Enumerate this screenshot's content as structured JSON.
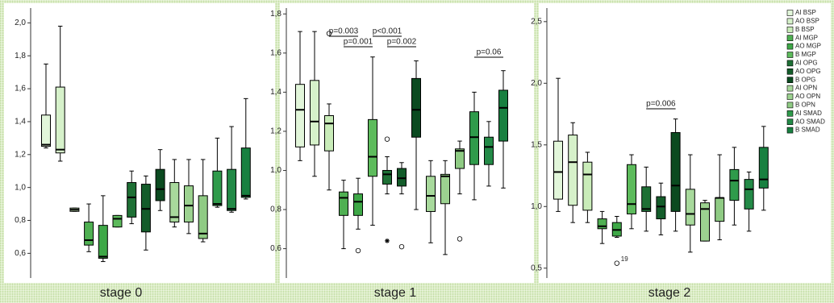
{
  "legend": [
    {
      "name": "AI BSP",
      "color": "#e2f6da"
    },
    {
      "name": "AO BSP",
      "color": "#d6f1ca"
    },
    {
      "name": "B BSP",
      "color": "#c9ecb9"
    },
    {
      "name": "AI MGP",
      "color": "#4fb052"
    },
    {
      "name": "AO MGP",
      "color": "#3ea847"
    },
    {
      "name": "B MGP",
      "color": "#5dbb5c"
    },
    {
      "name": "AI OPG",
      "color": "#1e7035"
    },
    {
      "name": "AO OPG",
      "color": "#135c2a"
    },
    {
      "name": "B OPG",
      "color": "#0b4a20"
    },
    {
      "name": "AI OPN",
      "color": "#a8d99c"
    },
    {
      "name": "AO OPN",
      "color": "#9cd290"
    },
    {
      "name": "B OPN",
      "color": "#8fcb84"
    },
    {
      "name": "AI SMAD",
      "color": "#2f9b4b"
    },
    {
      "name": "AO SMAD",
      "color": "#238a47"
    },
    {
      "name": "B SMAD",
      "color": "#188040"
    }
  ],
  "chart_data": [
    {
      "type": "box",
      "xlabel": "stage 0",
      "ylim": [
        0.45,
        2.09
      ],
      "yticks": [
        {
          "value": 0.6,
          "label": "0,6"
        },
        {
          "value": 0.8,
          "label": "0,8"
        },
        {
          "value": 1.0,
          "label": "1,0"
        },
        {
          "value": 1.2,
          "label": "1,2"
        },
        {
          "value": 1.4,
          "label": "1,4"
        },
        {
          "value": 1.6,
          "label": "1,6"
        },
        {
          "value": 1.8,
          "label": "1,8"
        },
        {
          "value": 2.0,
          "label": "2,0"
        }
      ],
      "boxes": [
        {
          "whisker_low": 1.24,
          "q1": 1.25,
          "median": 1.26,
          "q3": 1.44,
          "whisker_high": 1.75
        },
        {
          "whisker_low": 1.16,
          "q1": 1.21,
          "median": 1.23,
          "q3": 1.61,
          "whisker_high": 1.98
        },
        {
          "whisker_low": 0.855,
          "q1": 0.855,
          "median": 0.865,
          "q3": 0.875,
          "whisker_high": 0.875
        },
        {
          "whisker_low": 0.61,
          "q1": 0.65,
          "median": 0.68,
          "q3": 0.79,
          "whisker_high": 0.9
        },
        {
          "whisker_low": 0.55,
          "q1": 0.57,
          "median": 0.58,
          "q3": 0.77,
          "whisker_high": 0.95
        },
        {
          "whisker_low": 0.76,
          "q1": 0.76,
          "median": 0.81,
          "q3": 0.83,
          "whisker_high": 0.83
        },
        {
          "whisker_low": 0.78,
          "q1": 0.82,
          "median": 0.94,
          "q3": 1.03,
          "whisker_high": 1.1
        },
        {
          "whisker_low": 0.62,
          "q1": 0.73,
          "median": 0.87,
          "q3": 1.02,
          "whisker_high": 1.07
        },
        {
          "whisker_low": 0.86,
          "q1": 0.92,
          "median": 0.99,
          "q3": 1.11,
          "whisker_high": 1.23
        },
        {
          "whisker_low": 0.76,
          "q1": 0.79,
          "median": 0.82,
          "q3": 1.03,
          "whisker_high": 1.17
        },
        {
          "whisker_low": 0.72,
          "q1": 0.79,
          "median": 0.89,
          "q3": 1.01,
          "whisker_high": 1.17
        },
        {
          "whisker_low": 0.67,
          "q1": 0.69,
          "median": 0.72,
          "q3": 0.95,
          "whisker_high": 1.17
        },
        {
          "whisker_low": 0.88,
          "q1": 0.89,
          "median": 0.9,
          "q3": 1.1,
          "whisker_high": 1.3
        },
        {
          "whisker_low": 0.85,
          "q1": 0.86,
          "median": 0.87,
          "q3": 1.11,
          "whisker_high": 1.37
        },
        {
          "whisker_low": 0.93,
          "q1": 0.94,
          "median": 0.95,
          "q3": 1.24,
          "whisker_high": 1.54
        }
      ],
      "annotations": []
    },
    {
      "type": "box",
      "xlabel": "stage 1",
      "ylim": [
        0.45,
        1.83
      ],
      "yticks": [
        {
          "value": 0.6,
          "label": "0,6"
        },
        {
          "value": 0.8,
          "label": "0,8"
        },
        {
          "value": 1.0,
          "label": "1,0"
        },
        {
          "value": 1.2,
          "label": "1,2"
        },
        {
          "value": 1.4,
          "label": "1,4"
        },
        {
          "value": 1.6,
          "label": "1,6"
        },
        {
          "value": 1.8,
          "label": "1,8"
        }
      ],
      "boxes": [
        {
          "whisker_low": 1.05,
          "q1": 1.12,
          "median": 1.31,
          "q3": 1.44,
          "whisker_high": 1.71
        },
        {
          "whisker_low": 0.97,
          "q1": 1.13,
          "median": 1.25,
          "q3": 1.46,
          "whisker_high": 1.71
        },
        {
          "whisker_low": 0.9,
          "q1": 1.1,
          "median": 1.24,
          "q3": 1.28,
          "whisker_high": 1.34,
          "outliers": [
            {
              "value": 1.7
            }
          ]
        },
        {
          "whisker_low": 0.6,
          "q1": 0.77,
          "median": 0.86,
          "q3": 0.89,
          "whisker_high": 0.95
        },
        {
          "whisker_low": 0.7,
          "q1": 0.77,
          "median": 0.84,
          "q3": 0.88,
          "whisker_high": 0.96,
          "outliers": [
            {
              "value": 0.59
            }
          ]
        },
        {
          "whisker_low": 0.72,
          "q1": 0.97,
          "median": 1.07,
          "q3": 1.26,
          "whisker_high": 1.58
        },
        {
          "whisker_low": 0.88,
          "q1": 0.93,
          "median": 0.98,
          "q3": 1.0,
          "whisker_high": 1.07,
          "outliers": [
            {
              "value": 1.16
            },
            {
              "value": 0.64,
              "marker": "star"
            }
          ]
        },
        {
          "whisker_low": 0.88,
          "q1": 0.92,
          "median": 0.96,
          "q3": 1.01,
          "whisker_high": 1.04,
          "outliers": [
            {
              "value": 0.61
            }
          ]
        },
        {
          "whisker_low": 0.8,
          "q1": 1.17,
          "median": 1.31,
          "q3": 1.47,
          "whisker_high": 1.56
        },
        {
          "whisker_low": 0.63,
          "q1": 0.79,
          "median": 0.87,
          "q3": 0.97,
          "whisker_high": 1.05
        },
        {
          "whisker_low": 0.57,
          "q1": 0.83,
          "median": 0.97,
          "q3": 0.98,
          "whisker_high": 1.05
        },
        {
          "whisker_low": 0.88,
          "q1": 1.01,
          "median": 1.1,
          "q3": 1.11,
          "whisker_high": 1.15,
          "outliers": [
            {
              "value": 0.65
            }
          ]
        },
        {
          "whisker_low": 0.85,
          "q1": 1.03,
          "median": 1.17,
          "q3": 1.3,
          "whisker_high": 1.4
        },
        {
          "whisker_low": 0.92,
          "q1": 1.03,
          "median": 1.12,
          "q3": 1.17,
          "whisker_high": 1.25
        },
        {
          "whisker_low": 0.91,
          "q1": 1.15,
          "median": 1.32,
          "q3": 1.41,
          "whisker_high": 1.51
        }
      ],
      "annotations": [
        {
          "text": "p=0.003"
        },
        {
          "text": "p=0.001"
        },
        {
          "text": "p<0.001"
        },
        {
          "text": "p=0.002"
        },
        {
          "text": "p=0.06"
        }
      ]
    },
    {
      "type": "box",
      "xlabel": "stage 2",
      "ylim": [
        0.42,
        2.61
      ],
      "yticks": [
        {
          "value": 0.5,
          "label": "0,5"
        },
        {
          "value": 1.0,
          "label": "1,0"
        },
        {
          "value": 1.5,
          "label": "1,5"
        },
        {
          "value": 2.0,
          "label": "2,0"
        },
        {
          "value": 2.5,
          "label": "2,5"
        }
      ],
      "boxes": [
        {
          "whisker_low": 0.96,
          "q1": 1.06,
          "median": 1.28,
          "q3": 1.53,
          "whisker_high": 2.04
        },
        {
          "whisker_low": 0.87,
          "q1": 1.01,
          "median": 1.36,
          "q3": 1.58,
          "whisker_high": 1.68
        },
        {
          "whisker_low": 0.87,
          "q1": 0.97,
          "median": 1.26,
          "q3": 1.36,
          "whisker_high": 1.44
        },
        {
          "whisker_low": 0.7,
          "q1": 0.82,
          "median": 0.84,
          "q3": 0.9,
          "whisker_high": 0.96
        },
        {
          "whisker_low": 0.75,
          "q1": 0.76,
          "median": 0.81,
          "q3": 0.87,
          "whisker_high": 0.92,
          "outliers": [
            {
              "value": 0.54,
              "label": "19"
            }
          ]
        },
        {
          "whisker_low": 0.82,
          "q1": 0.94,
          "median": 1.02,
          "q3": 1.34,
          "whisker_high": 1.42
        },
        {
          "whisker_low": 0.8,
          "q1": 0.96,
          "median": 0.98,
          "q3": 1.16,
          "whisker_high": 1.32
        },
        {
          "whisker_low": 0.77,
          "q1": 0.9,
          "median": 1.0,
          "q3": 1.08,
          "whisker_high": 1.19
        },
        {
          "whisker_low": 0.8,
          "q1": 0.96,
          "median": 1.17,
          "q3": 1.6,
          "whisker_high": 1.71
        },
        {
          "whisker_low": 0.63,
          "q1": 0.85,
          "median": 0.94,
          "q3": 1.14,
          "whisker_high": 1.42
        },
        {
          "whisker_low": 0.72,
          "q1": 0.72,
          "median": 0.98,
          "q3": 1.03,
          "whisker_high": 1.05
        },
        {
          "whisker_low": 0.73,
          "q1": 0.88,
          "median": 1.07,
          "q3": 1.07,
          "whisker_high": 1.42
        },
        {
          "whisker_low": 0.85,
          "q1": 1.05,
          "median": 1.21,
          "q3": 1.3,
          "whisker_high": 1.48
        },
        {
          "whisker_low": 0.8,
          "q1": 0.98,
          "median": 1.14,
          "q3": 1.22,
          "whisker_high": 1.28
        },
        {
          "whisker_low": 0.97,
          "q1": 1.15,
          "median": 1.22,
          "q3": 1.48,
          "whisker_high": 1.65
        }
      ],
      "annotations": [
        {
          "text": "p=0.006"
        }
      ]
    }
  ]
}
